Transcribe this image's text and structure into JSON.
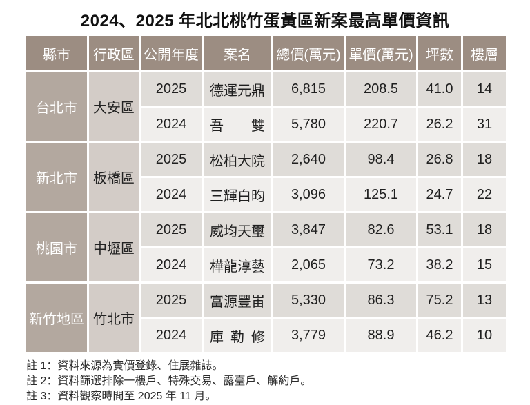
{
  "title": "2024、2025 年北北桃竹蛋黃區新案最高單價資訊",
  "colors": {
    "header_bg": "#9c8d82",
    "county_bg": "#b3a89f",
    "district_bg": "#d3ccc7",
    "row_odd_bg": "#dfdcd8",
    "row_even_bg": "#f0eeec",
    "header_text": "#ffffff"
  },
  "chart_data": {
    "type": "table",
    "title": "2024、2025 年北北桃竹蛋黃區新案最高單價資訊",
    "columns": [
      "縣市",
      "行政區",
      "公開年度",
      "案名",
      "總價(萬元)",
      "單價(萬元)",
      "坪數",
      "樓層"
    ],
    "groups": [
      {
        "county": "台北市",
        "district": "大安區",
        "rows": [
          {
            "year": "2025",
            "name": "德運元鼎",
            "total_price": "6,815",
            "unit_price": "208.5",
            "ping": "41.0",
            "floor": "14"
          },
          {
            "year": "2024",
            "name": "吾雙",
            "total_price": "5,780",
            "unit_price": "220.7",
            "ping": "26.2",
            "floor": "31"
          }
        ]
      },
      {
        "county": "新北市",
        "district": "板橋區",
        "rows": [
          {
            "year": "2025",
            "name": "松柏大院",
            "total_price": "2,640",
            "unit_price": "98.4",
            "ping": "26.8",
            "floor": "18"
          },
          {
            "year": "2024",
            "name": "三輝白昀",
            "total_price": "3,096",
            "unit_price": "125.1",
            "ping": "24.7",
            "floor": "22"
          }
        ]
      },
      {
        "county": "桃園市",
        "district": "中壢區",
        "rows": [
          {
            "year": "2025",
            "name": "威均天璽",
            "total_price": "3,847",
            "unit_price": "82.6",
            "ping": "53.1",
            "floor": "18"
          },
          {
            "year": "2024",
            "name": "樺龍淳藝",
            "total_price": "2,065",
            "unit_price": "73.2",
            "ping": "38.2",
            "floor": "15"
          }
        ]
      },
      {
        "county": "新竹地區",
        "district": "竹北市",
        "rows": [
          {
            "year": "2025",
            "name": "富源豐峀",
            "total_price": "5,330",
            "unit_price": "86.3",
            "ping": "75.2",
            "floor": "13"
          },
          {
            "year": "2024",
            "name": "庫勒修",
            "total_price": "3,779",
            "unit_price": "88.9",
            "ping": "46.2",
            "floor": "10"
          }
        ]
      }
    ]
  },
  "footnotes": [
    "註 1：資料來源為實價登錄、住展雜誌。",
    "註 2：資料篩選排除一樓戶、特殊交易、露臺戶、解約戶。",
    "註 3：資料觀察時間至 2025 年 11 月。"
  ]
}
